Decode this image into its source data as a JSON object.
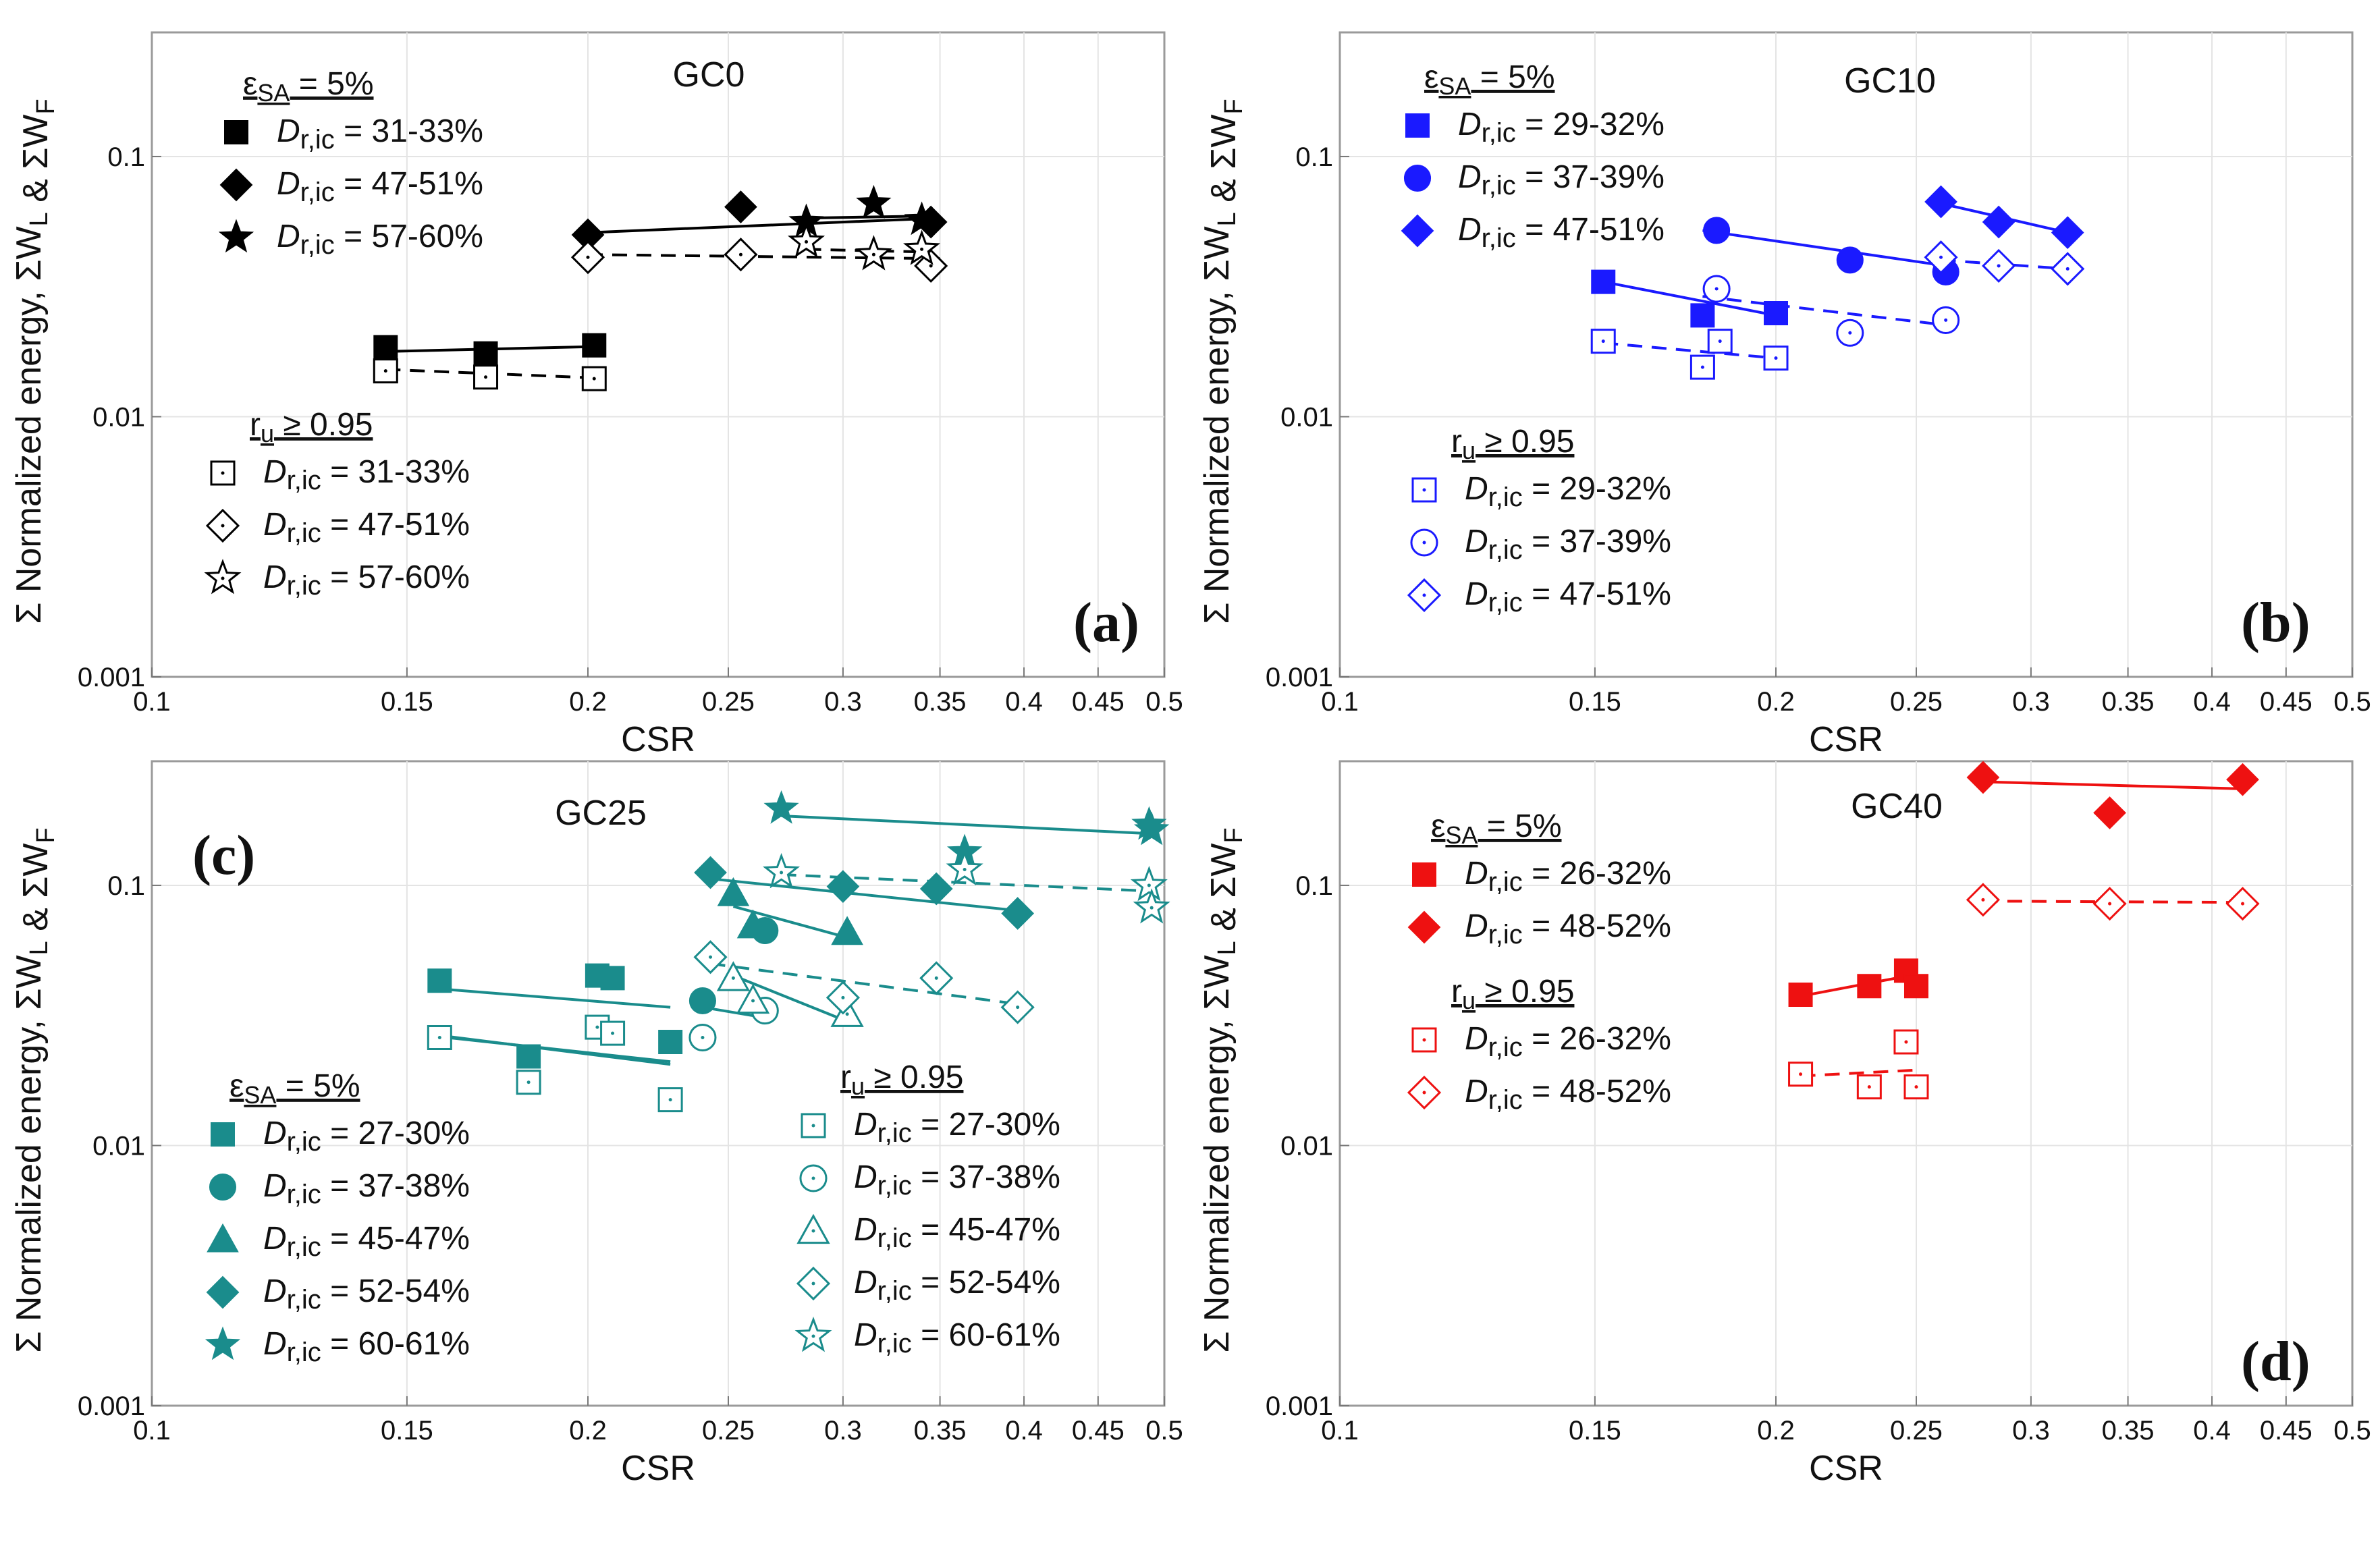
{
  "figure": {
    "y_axis_label": "Σ Normalized energy, ΣW_L & ΣW_F",
    "x_axis_label": "CSR",
    "x_ticks": [
      "0.1",
      "0.15",
      "0.2",
      "0.25",
      "0.3",
      "0.35",
      "0.4",
      "0.45",
      "0.5"
    ],
    "y_ticks": [
      "0.001",
      "0.01",
      "0.1"
    ],
    "sa_legend_title": "ε_SA = 5%",
    "ru_legend_title": "r_u ≥ 0.95"
  },
  "chart_data": [
    {
      "type": "scatter",
      "panel": "(a)",
      "title": "GC0",
      "color": "#000000",
      "xlabel": "CSR",
      "ylabel": "Σ Normalized energy, ΣW_L & ΣW_F",
      "xscale": "log",
      "yscale": "log",
      "xlim": [
        0.1,
        0.5
      ],
      "ylim": [
        0.001,
        0.3
      ],
      "series": [
        {
          "name": "ε_SA = 5%, Dr,ic = 31-33%",
          "marker": "square",
          "filled": true,
          "points": [
            [
              0.145,
              0.0185
            ],
            [
              0.17,
              0.0175
            ],
            [
              0.202,
              0.0188
            ]
          ],
          "fit": [
            [
              0.145,
              0.0178
            ],
            [
              0.202,
              0.0186
            ]
          ],
          "dashed": false
        },
        {
          "name": "ε_SA = 5%, Dr,ic = 47-51%",
          "marker": "diamond",
          "filled": true,
          "points": [
            [
              0.2,
              0.05
            ],
            [
              0.255,
              0.064
            ],
            [
              0.345,
              0.056
            ]
          ],
          "fit": [
            [
              0.2,
              0.051
            ],
            [
              0.35,
              0.058
            ]
          ],
          "dashed": false
        },
        {
          "name": "ε_SA = 5%, Dr,ic = 57-60%",
          "marker": "star",
          "filled": true,
          "points": [
            [
              0.283,
              0.056
            ],
            [
              0.315,
              0.066
            ],
            [
              0.34,
              0.057
            ]
          ],
          "fit": [
            [
              0.283,
              0.058
            ],
            [
              0.34,
              0.059
            ]
          ],
          "dashed": false
        },
        {
          "name": "r_u ≥ 0.95, Dr,ic = 31-33%",
          "marker": "square",
          "filled": false,
          "points": [
            [
              0.145,
              0.015
            ],
            [
              0.17,
              0.0142
            ],
            [
              0.202,
              0.014
            ]
          ],
          "fit": [
            [
              0.145,
              0.0152
            ],
            [
              0.202,
              0.0141
            ]
          ],
          "dashed": true
        },
        {
          "name": "r_u ≥ 0.95, Dr,ic = 47-51%",
          "marker": "diamond",
          "filled": false,
          "points": [
            [
              0.2,
              0.041
            ],
            [
              0.255,
              0.042
            ],
            [
              0.345,
              0.038
            ]
          ],
          "fit": [
            [
              0.2,
              0.042
            ],
            [
              0.35,
              0.0405
            ]
          ],
          "dashed": true
        },
        {
          "name": "r_u ≥ 0.95, Dr,ic = 57-60%",
          "marker": "star",
          "filled": false,
          "points": [
            [
              0.283,
              0.047
            ],
            [
              0.315,
              0.042
            ],
            [
              0.34,
              0.044
            ]
          ],
          "fit": [
            [
              0.283,
              0.044
            ],
            [
              0.34,
              0.043
            ]
          ],
          "dashed": true
        }
      ]
    },
    {
      "type": "scatter",
      "panel": "(b)",
      "title": "GC10",
      "color": "#1a1aff",
      "xlabel": "CSR",
      "ylabel": "Σ Normalized energy, ΣW_L & ΣW_F",
      "xscale": "log",
      "yscale": "log",
      "xlim": [
        0.1,
        0.5
      ],
      "ylim": [
        0.001,
        0.3
      ],
      "series": [
        {
          "name": "ε_SA = 5%, Dr,ic = 29-32%",
          "marker": "square",
          "filled": true,
          "points": [
            [
              0.152,
              0.033
            ],
            [
              0.178,
              0.0245
            ],
            [
              0.2,
              0.025
            ]
          ],
          "fit": [
            [
              0.152,
              0.033
            ],
            [
              0.2,
              0.0245
            ]
          ],
          "dashed": false
        },
        {
          "name": "ε_SA = 5%, Dr,ic = 37-39%",
          "marker": "circle",
          "filled": true,
          "points": [
            [
              0.182,
              0.052
            ],
            [
              0.225,
              0.04
            ],
            [
              0.262,
              0.036
            ]
          ],
          "fit": [
            [
              0.178,
              0.052
            ],
            [
              0.262,
              0.038
            ]
          ],
          "dashed": false
        },
        {
          "name": "ε_SA = 5%, Dr,ic = 47-51%",
          "marker": "diamond",
          "filled": true,
          "points": [
            [
              0.26,
              0.067
            ],
            [
              0.285,
              0.056
            ],
            [
              0.318,
              0.051
            ]
          ],
          "fit": [
            [
              0.26,
              0.066
            ],
            [
              0.318,
              0.051
            ]
          ],
          "dashed": false
        },
        {
          "name": "r_u ≥ 0.95, Dr,ic = 29-32%",
          "marker": "square",
          "filled": false,
          "points": [
            [
              0.152,
              0.0195
            ],
            [
              0.178,
              0.0155
            ],
            [
              0.183,
              0.0195
            ],
            [
              0.2,
              0.0168
            ]
          ],
          "fit": [
            [
              0.152,
              0.0192
            ],
            [
              0.2,
              0.0168
            ]
          ],
          "dashed": true
        },
        {
          "name": "r_u ≥ 0.95, Dr,ic = 37-39%",
          "marker": "circle",
          "filled": false,
          "points": [
            [
              0.182,
              0.031
            ],
            [
              0.225,
              0.021
            ],
            [
              0.262,
              0.0235
            ]
          ],
          "fit": [
            [
              0.178,
              0.029
            ],
            [
              0.262,
              0.0225
            ]
          ],
          "dashed": true
        },
        {
          "name": "r_u ≥ 0.95, Dr,ic = 47-51%",
          "marker": "diamond",
          "filled": false,
          "points": [
            [
              0.26,
              0.041
            ],
            [
              0.285,
              0.038
            ],
            [
              0.318,
              0.037
            ]
          ],
          "fit": [
            [
              0.26,
              0.04
            ],
            [
              0.318,
              0.037
            ]
          ],
          "dashed": true
        }
      ]
    },
    {
      "type": "scatter",
      "panel": "(c)",
      "title": "GC25",
      "color": "#1a8c8c",
      "xlabel": "CSR",
      "ylabel": "Σ Normalized energy, ΣW_L & ΣW_F",
      "xscale": "log",
      "yscale": "log",
      "xlim": [
        0.1,
        0.5
      ],
      "ylim": [
        0.001,
        0.3
      ],
      "series": [
        {
          "name": "ε_SA = 5%, Dr,ic = 27-30%",
          "marker": "square",
          "filled": true,
          "points": [
            [
              0.158,
              0.043
            ],
            [
              0.182,
              0.022
            ],
            [
              0.203,
              0.045
            ],
            [
              0.208,
              0.044
            ],
            [
              0.228,
              0.025
            ]
          ],
          "fit": [
            [
              0.158,
              0.04
            ],
            [
              0.228,
              0.034
            ]
          ],
          "dashed": false
        },
        {
          "name": "ε_SA = 5%, Dr,ic = 37-38%",
          "marker": "circle",
          "filled": true,
          "points": [
            [
              0.24,
              0.036
            ],
            [
              0.265,
              0.067
            ]
          ],
          "fit": [
            [
              0.158,
              0.0265
            ],
            [
              0.228,
              0.0205
            ]
          ],
          "dashed": false
        },
        {
          "name": "ε_SA = 5%, Dr,ic = 45-47%",
          "marker": "triangle",
          "filled": true,
          "points": [
            [
              0.252,
              0.093
            ],
            [
              0.26,
              0.07
            ],
            [
              0.302,
              0.066
            ]
          ],
          "fit": [
            [
              0.252,
              0.083
            ],
            [
              0.302,
              0.063
            ]
          ],
          "dashed": false
        },
        {
          "name": "ε_SA = 5%, Dr,ic = 52-54%",
          "marker": "diamond",
          "filled": true,
          "points": [
            [
              0.243,
              0.112
            ],
            [
              0.3,
              0.099
            ],
            [
              0.348,
              0.097
            ],
            [
              0.396,
              0.078
            ]
          ],
          "fit": [
            [
              0.243,
              0.106
            ],
            [
              0.396,
              0.08
            ]
          ],
          "dashed": false
        },
        {
          "name": "ε_SA = 5%, Dr,ic = 60-61%",
          "marker": "star",
          "filled": true,
          "points": [
            [
              0.272,
              0.197
            ],
            [
              0.364,
              0.134
            ],
            [
              0.488,
              0.171
            ],
            [
              0.49,
              0.163
            ]
          ],
          "fit": [
            [
              0.272,
              0.185
            ],
            [
              0.49,
              0.158
            ]
          ],
          "dashed": false
        },
        {
          "name": "r_u ≥ 0.95, Dr,ic = 27-30%",
          "marker": "square",
          "filled": false,
          "points": [
            [
              0.158,
              0.026
            ],
            [
              0.182,
              0.0175
            ],
            [
              0.203,
              0.0285
            ],
            [
              0.208,
              0.027
            ],
            [
              0.228,
              0.015
            ]
          ],
          "fit": [
            [
              0.158,
              0.0262
            ],
            [
              0.228,
              0.021
            ]
          ],
          "dashed": false
        },
        {
          "name": "r_u ≥ 0.95, Dr,ic = 37-38%",
          "marker": "circle",
          "filled": false,
          "points": [
            [
              0.24,
              0.026
            ],
            [
              0.265,
              0.033
            ]
          ],
          "fit": [
            [
              0.24,
              0.034
            ],
            [
              0.265,
              0.031
            ]
          ],
          "dashed": false
        },
        {
          "name": "r_u ≥ 0.95, Dr,ic = 45-47%",
          "marker": "triangle",
          "filled": false,
          "points": [
            [
              0.252,
              0.044
            ],
            [
              0.26,
              0.036
            ],
            [
              0.302,
              0.032
            ]
          ],
          "fit": [
            [
              0.252,
              0.045
            ],
            [
              0.302,
              0.03
            ]
          ],
          "dashed": false
        },
        {
          "name": "r_u ≥ 0.95, Dr,ic = 52-54%",
          "marker": "diamond",
          "filled": false,
          "points": [
            [
              0.243,
              0.053
            ],
            [
              0.3,
              0.037
            ],
            [
              0.348,
              0.044
            ],
            [
              0.396,
              0.034
            ]
          ],
          "fit": [
            [
              0.243,
              0.05
            ],
            [
              0.396,
              0.035
            ]
          ],
          "dashed": true
        },
        {
          "name": "r_u ≥ 0.95, Dr,ic = 60-61%",
          "marker": "star",
          "filled": false,
          "points": [
            [
              0.272,
              0.112
            ],
            [
              0.364,
              0.115
            ],
            [
              0.488,
              0.1
            ],
            [
              0.49,
              0.082
            ]
          ],
          "fit": [
            [
              0.272,
              0.11
            ],
            [
              0.49,
              0.095
            ]
          ],
          "dashed": true
        }
      ]
    },
    {
      "type": "scatter",
      "panel": "(d)",
      "title": "GC40",
      "color": "#ee1111",
      "xlabel": "CSR",
      "ylabel": "Σ Normalized energy, ΣW_L & ΣW_F",
      "xscale": "log",
      "yscale": "log",
      "xlim": [
        0.1,
        0.5
      ],
      "ylim": [
        0.001,
        0.3
      ],
      "series": [
        {
          "name": "ε_SA = 5%, Dr,ic = 26-32%",
          "marker": "square",
          "filled": true,
          "points": [
            [
              0.208,
              0.038
            ],
            [
              0.232,
              0.041
            ],
            [
              0.246,
              0.047
            ],
            [
              0.25,
              0.041
            ]
          ],
          "fit": [
            [
              0.208,
              0.0375
            ],
            [
              0.25,
              0.0455
            ]
          ],
          "dashed": false
        },
        {
          "name": "ε_SA = 5%, Dr,ic = 48-52%",
          "marker": "diamond",
          "filled": true,
          "points": [
            [
              0.278,
              0.26
            ],
            [
              0.34,
              0.19
            ],
            [
              0.42,
              0.255
            ]
          ],
          "fit": [
            [
              0.278,
              0.25
            ],
            [
              0.42,
              0.235
            ]
          ],
          "dashed": false
        },
        {
          "name": "r_u ≥ 0.95, Dr,ic = 26-32%",
          "marker": "square",
          "filled": false,
          "points": [
            [
              0.208,
              0.0188
            ],
            [
              0.232,
              0.0168
            ],
            [
              0.246,
              0.025
            ],
            [
              0.25,
              0.0168
            ]
          ],
          "fit": [
            [
              0.208,
              0.0185
            ],
            [
              0.25,
              0.0195
            ]
          ],
          "dashed": true
        },
        {
          "name": "r_u ≥ 0.95, Dr,ic = 48-52%",
          "marker": "diamond",
          "filled": false,
          "points": [
            [
              0.278,
              0.088
            ],
            [
              0.34,
              0.085
            ],
            [
              0.42,
              0.085
            ]
          ],
          "fit": [
            [
              0.278,
              0.087
            ],
            [
              0.42,
              0.086
            ]
          ],
          "dashed": true
        }
      ]
    }
  ],
  "legends": {
    "a": {
      "sa": [
        "Dr,ic = 31-33%",
        "Dr,ic = 47-51%",
        "Dr,ic = 57-60%"
      ],
      "ru": [
        "Dr,ic = 31-33%",
        "Dr,ic = 47-51%",
        "Dr,ic = 57-60%"
      ]
    },
    "b": {
      "sa": [
        "Dr,ic = 29-32%",
        "Dr,ic = 37-39%",
        "Dr,ic = 47-51%"
      ],
      "ru": [
        "Dr,ic = 29-32%",
        "Dr,ic = 37-39%",
        "Dr,ic = 47-51%"
      ]
    },
    "c": {
      "sa": [
        "Dr,ic = 27-30%",
        "Dr,ic = 37-38%",
        "Dr,ic = 45-47%",
        "Dr,ic = 52-54%",
        "Dr,ic = 60-61%"
      ],
      "ru": [
        "Dr,ic = 27-30%",
        "Dr,ic = 37-38%",
        "Dr,ic = 45-47%",
        "Dr,ic = 52-54%",
        "Dr,ic = 60-61%"
      ]
    },
    "d": {
      "sa": [
        "Dr,ic = 26-32%",
        "Dr,ic = 48-52%"
      ],
      "ru": [
        "Dr,ic = 26-32%",
        "Dr,ic = 48-52%"
      ]
    }
  }
}
